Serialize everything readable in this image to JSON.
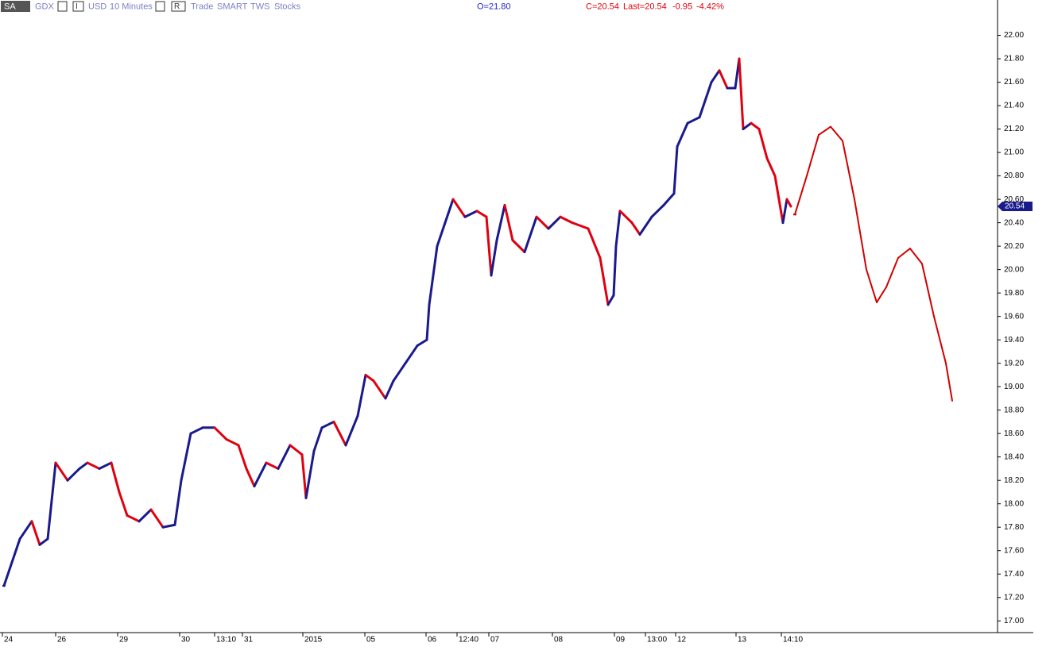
{
  "toolbar": {
    "symbol_box": "SA",
    "symbol": "GDX",
    "type_box": "I",
    "currency": "USD",
    "bar_size": "10 Minutes",
    "range_box": "R",
    "mode": "Trade",
    "exchange": "SMART",
    "source": "TWS",
    "sec_type": "Stocks",
    "open": "O=21.80",
    "close": "C=20.54",
    "last": "Last=20.54",
    "change": "-0.95",
    "change_pct": "-4.42%"
  },
  "chart_data": {
    "type": "line",
    "series": [
      {
        "color": "#e0000f",
        "down_color": "#e0000f",
        "up_color": "#1a1a8c",
        "x": [
          5,
          15,
          25,
          40,
          50,
          60,
          70,
          85,
          100,
          110,
          125,
          140,
          150,
          160,
          175,
          190,
          205,
          220,
          228,
          240,
          255,
          270,
          285,
          300,
          310,
          320,
          335,
          350,
          365,
          380,
          385,
          395,
          405,
          420,
          435,
          450,
          460,
          470,
          485,
          495,
          510,
          525,
          537,
          540,
          550,
          560,
          570,
          585,
          600,
          612,
          618,
          625,
          635,
          645,
          660,
          675,
          690,
          705,
          720,
          740,
          755,
          765,
          772,
          775,
          780,
          795,
          805,
          820,
          835,
          848,
          852,
          865,
          880,
          895,
          905,
          915,
          925,
          930,
          935,
          945,
          955,
          965,
          975,
          985,
          990,
          995
        ],
        "values": [
          17.3,
          17.5,
          17.7,
          17.85,
          17.65,
          17.7,
          18.35,
          18.2,
          18.3,
          18.35,
          18.3,
          18.35,
          18.1,
          17.9,
          17.85,
          17.95,
          17.8,
          17.82,
          18.2,
          18.6,
          18.65,
          18.65,
          18.55,
          18.5,
          18.3,
          18.15,
          18.35,
          18.3,
          18.5,
          18.42,
          18.05,
          18.45,
          18.65,
          18.7,
          18.5,
          18.75,
          19.1,
          19.05,
          18.9,
          19.05,
          19.2,
          19.35,
          19.4,
          19.7,
          20.2,
          20.4,
          20.6,
          20.45,
          20.5,
          20.45,
          19.95,
          20.25,
          20.55,
          20.25,
          20.15,
          20.45,
          20.35,
          20.45,
          20.4,
          20.35,
          20.1,
          19.7,
          19.78,
          20.2,
          20.5,
          20.4,
          20.3,
          20.45,
          20.55,
          20.65,
          21.05,
          21.25,
          21.3,
          21.6,
          21.7,
          21.55,
          21.55,
          21.8,
          21.2,
          21.25,
          21.2,
          20.95,
          20.8,
          20.4,
          20.6,
          20.54
        ]
      },
      {
        "color": "#d00000",
        "x": [
          1000,
          1015,
          1030,
          1045,
          1060,
          1075,
          1090,
          1103,
          1115,
          1130,
          1145,
          1160,
          1175,
          1190,
          1198
        ],
        "values": [
          20.47,
          20.8,
          21.15,
          21.22,
          21.1,
          20.6,
          20.0,
          19.72,
          19.85,
          20.1,
          20.18,
          20.05,
          19.6,
          19.2,
          18.88
        ]
      }
    ],
    "last_price": 20.54,
    "xlim": [
      0,
      1255
    ],
    "ylim": [
      16.9,
      22.18
    ],
    "xticks": [
      {
        "value": 3,
        "label": "24"
      },
      {
        "value": 70,
        "label": "26"
      },
      {
        "value": 148,
        "label": "29"
      },
      {
        "value": 226,
        "label": "30"
      },
      {
        "value": 270,
        "label": "13:10"
      },
      {
        "value": 305,
        "label": "31"
      },
      {
        "value": 381,
        "label": "2015"
      },
      {
        "value": 459,
        "label": "05"
      },
      {
        "value": 536,
        "label": "06"
      },
      {
        "value": 575,
        "label": "12:40"
      },
      {
        "value": 615,
        "label": "07"
      },
      {
        "value": 695,
        "label": "08"
      },
      {
        "value": 773,
        "label": "09"
      },
      {
        "value": 812,
        "label": "13:00"
      },
      {
        "value": 850,
        "label": "12"
      },
      {
        "value": 926,
        "label": "13"
      },
      {
        "value": 983,
        "label": "14:10"
      }
    ],
    "yticks": [
      {
        "value": 17,
        "label": "17.00"
      },
      {
        "value": 17.2,
        "label": "17.20"
      },
      {
        "value": 17.4,
        "label": "17.40"
      },
      {
        "value": 17.6,
        "label": "17.60"
      },
      {
        "value": 17.8,
        "label": "17.80"
      },
      {
        "value": 18,
        "label": "18.00"
      },
      {
        "value": 18.2,
        "label": "18.20"
      },
      {
        "value": 18.4,
        "label": "18.40"
      },
      {
        "value": 18.6,
        "label": "18.60"
      },
      {
        "value": 18.8,
        "label": "18.80"
      },
      {
        "value": 19,
        "label": "19.00"
      },
      {
        "value": 19.2,
        "label": "19.20"
      },
      {
        "value": 19.4,
        "label": "19.40"
      },
      {
        "value": 19.6,
        "label": "19.60"
      },
      {
        "value": 19.8,
        "label": "19.80"
      },
      {
        "value": 20,
        "label": "20.00"
      },
      {
        "value": 20.2,
        "label": "20.20"
      },
      {
        "value": 20.4,
        "label": "20.40"
      },
      {
        "value": 20.6,
        "label": "20.60"
      },
      {
        "value": 20.8,
        "label": "20.80"
      },
      {
        "value": 21,
        "label": "21.00"
      },
      {
        "value": 21.2,
        "label": "21.20"
      },
      {
        "value": 21.4,
        "label": "21.40"
      },
      {
        "value": 21.6,
        "label": "21.60"
      },
      {
        "value": 21.8,
        "label": "21.80"
      },
      {
        "value": 22,
        "label": "22.00"
      }
    ]
  }
}
